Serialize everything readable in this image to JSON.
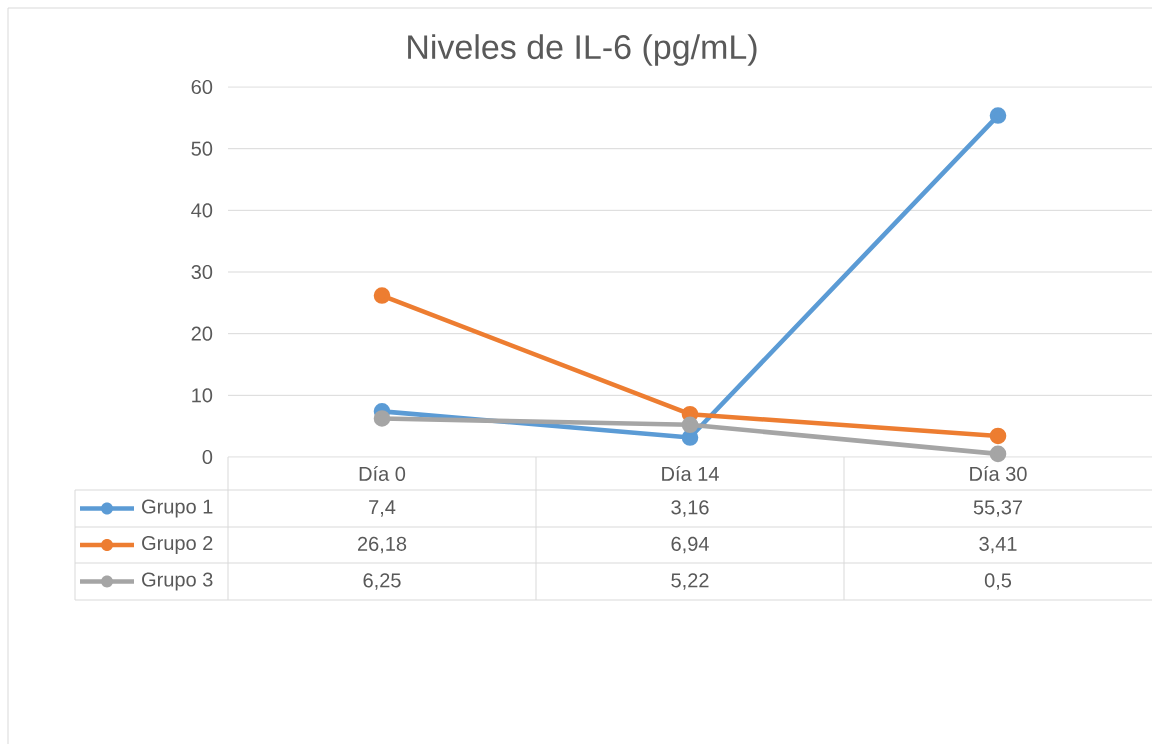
{
  "chart_data": {
    "type": "line",
    "title": "Niveles de IL-6 (pg/mL)",
    "categories": [
      "Día 0",
      "Día 14",
      "Día 30"
    ],
    "series": [
      {
        "name": "Grupo 1",
        "color": "#5b9bd5",
        "values": [
          7.4,
          3.16,
          55.37
        ],
        "value_labels": [
          "7,4",
          "3,16",
          "55,37"
        ]
      },
      {
        "name": "Grupo 2",
        "color": "#ed7d31",
        "values": [
          26.18,
          6.94,
          3.41
        ],
        "value_labels": [
          "26,18",
          "6,94",
          "3,41"
        ]
      },
      {
        "name": "Grupo 3",
        "color": "#a5a5a5",
        "values": [
          6.25,
          5.22,
          0.5
        ],
        "value_labels": [
          "6,25",
          "5,22",
          "0,5"
        ]
      }
    ],
    "ylim": [
      0,
      60
    ],
    "yticks": [
      0,
      10,
      20,
      30,
      40,
      50,
      60
    ],
    "grid": "y",
    "legend": "bottom",
    "marker": "circle",
    "line_style": "solid"
  }
}
